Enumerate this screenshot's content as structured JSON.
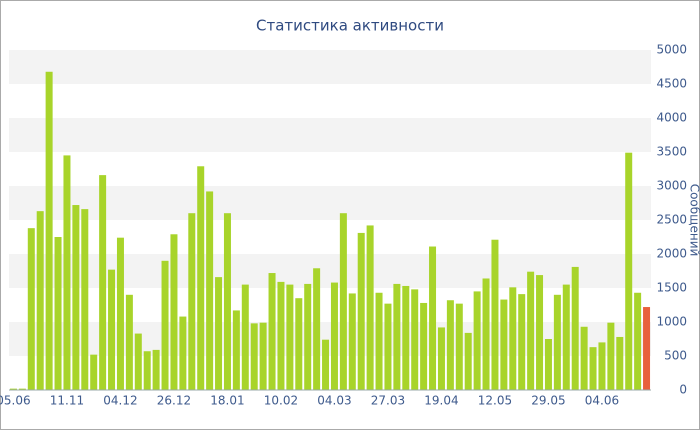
{
  "chart_data": {
    "type": "bar",
    "title": "Статистика активности",
    "y_label": "Сообщений",
    "categories": [
      "05.06",
      null,
      null,
      null,
      null,
      null,
      "11.11",
      null,
      null,
      null,
      null,
      null,
      "04.12",
      null,
      null,
      null,
      null,
      null,
      "26.12",
      null,
      null,
      null,
      null,
      null,
      "18.01",
      null,
      null,
      null,
      null,
      null,
      "10.02",
      null,
      null,
      null,
      null,
      null,
      "04.03",
      null,
      null,
      null,
      null,
      null,
      "27.03",
      null,
      null,
      null,
      null,
      null,
      "19.04",
      null,
      null,
      null,
      null,
      null,
      "12.05",
      null,
      null,
      null,
      null,
      null,
      "29.05",
      null,
      null,
      null,
      null,
      null,
      "04.06",
      null,
      null,
      null,
      null,
      null
    ],
    "values": [
      20,
      20,
      2380,
      2630,
      4680,
      2250,
      3450,
      2720,
      2660,
      520,
      3160,
      1770,
      2240,
      1400,
      830,
      570,
      590,
      1900,
      2290,
      1080,
      2600,
      3290,
      2920,
      1660,
      2600,
      1170,
      1550,
      980,
      990,
      1720,
      1590,
      1550,
      1350,
      1560,
      1790,
      740,
      1580,
      2600,
      1420,
      2310,
      2420,
      1430,
      1270,
      1560,
      1530,
      1480,
      1280,
      2110,
      920,
      1320,
      1270,
      840,
      1450,
      1640,
      2210,
      1330,
      1510,
      1410,
      1740,
      1690,
      750,
      1400,
      1550,
      1810,
      930,
      630,
      700,
      990,
      780,
      3490,
      1430,
      1220
    ],
    "color": "#a8d42a",
    "last_color": "#e8603c",
    "ylim": [
      0,
      5000
    ],
    "yticks": [
      0,
      500,
      1000,
      1500,
      2000,
      2500,
      3000,
      3500,
      4000,
      4500,
      5000
    ],
    "y_axis_side": "right",
    "grid": true
  }
}
